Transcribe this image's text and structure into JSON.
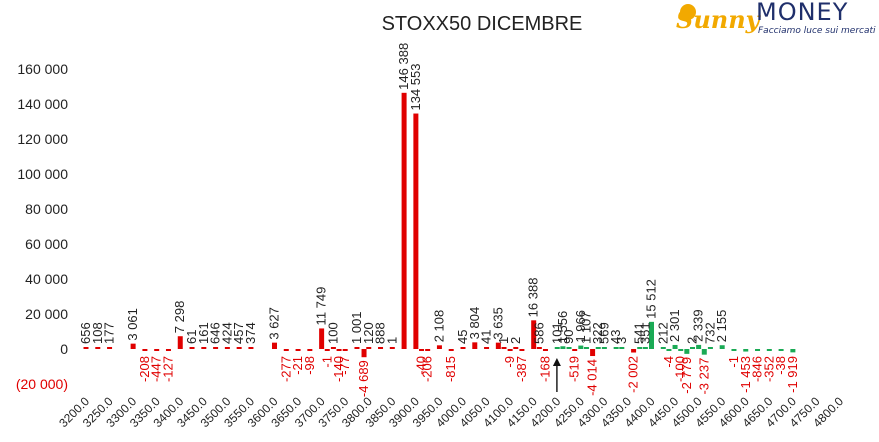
{
  "logo": {
    "name_part1": "Sunny",
    "name_part2": "MONEY",
    "tagline": "Facciamo luce sui mercati",
    "colors": {
      "sun": "#f2a900",
      "text": "#1f2f6b"
    }
  },
  "chart_data": {
    "type": "bar",
    "title": "STOXX50 DICEMBRE",
    "xlabel": "",
    "ylabel": "",
    "ylim": [
      -20000,
      160000
    ],
    "yticks": [
      -20000,
      0,
      20000,
      40000,
      60000,
      80000,
      100000,
      120000,
      140000,
      160000
    ],
    "ytick_labels": [
      "(20 000)",
      "0",
      "20 000",
      "40 000",
      "60 000",
      "80 000",
      "100 000",
      "120 000",
      "140 000",
      "160 000"
    ],
    "grid": false,
    "legend": "none",
    "colors": {
      "put": "#e00000",
      "call": "#1aaa55",
      "axis_negative": "#e00000"
    },
    "x_tick_labels": [
      "3200.0",
      "3250.0",
      "3300.0",
      "3350.0",
      "3400.0",
      "3450.0",
      "3500.0",
      "3550.0",
      "3600.0",
      "3650.0",
      "3700.0",
      "3750.0",
      "3800.0",
      "3850.0",
      "3900.0",
      "3950.0",
      "4000.0",
      "4050.0",
      "4100.0",
      "4150.0",
      "4200.0",
      "4250.0",
      "4300.0",
      "4350.0",
      "4400.0",
      "4450.0",
      "4500.0",
      "4550.0",
      "4600.0",
      "4650.0",
      "4700.0",
      "4750.0",
      "4800.0"
    ],
    "bars": [
      {
        "strike": 3200,
        "value": 656,
        "label": "656",
        "color": "put"
      },
      {
        "strike": 3225,
        "value": 108,
        "label": "108",
        "color": "put"
      },
      {
        "strike": 3250,
        "value": 177,
        "label": "177",
        "color": "put"
      },
      {
        "strike": 3300,
        "value": 3061,
        "label": "3 061",
        "color": "put"
      },
      {
        "strike": 3325,
        "value": -208,
        "label": "-208",
        "color": "put"
      },
      {
        "strike": 3350,
        "value": -447,
        "label": "-447",
        "color": "put"
      },
      {
        "strike": 3375,
        "value": -127,
        "label": "-127",
        "color": "put"
      },
      {
        "strike": 3400,
        "value": 7298,
        "label": "7 298",
        "color": "put"
      },
      {
        "strike": 3425,
        "value": 61,
        "label": "61",
        "color": "put"
      },
      {
        "strike": 3450,
        "value": 161,
        "label": "161",
        "color": "put"
      },
      {
        "strike": 3475,
        "value": 646,
        "label": "646",
        "color": "put"
      },
      {
        "strike": 3500,
        "value": 424,
        "label": "424",
        "color": "put"
      },
      {
        "strike": 3525,
        "value": 457,
        "label": "457",
        "color": "put"
      },
      {
        "strike": 3550,
        "value": 374,
        "label": "374",
        "color": "put"
      },
      {
        "strike": 3600,
        "value": 3627,
        "label": "3 627",
        "color": "put"
      },
      {
        "strike": 3625,
        "value": -277,
        "label": "-277",
        "color": "put"
      },
      {
        "strike": 3650,
        "value": -21,
        "label": "-21",
        "color": "put"
      },
      {
        "strike": 3675,
        "value": -98,
        "label": "-98",
        "color": "put"
      },
      {
        "strike": 3700,
        "value": 11749,
        "label": "11 749",
        "color": "put"
      },
      {
        "strike": 3712,
        "value": -1,
        "label": "-1",
        "color": "put"
      },
      {
        "strike": 3725,
        "value": 100,
        "label": "100",
        "color": "put"
      },
      {
        "strike": 3737,
        "value": -140,
        "label": "-140",
        "color": "put"
      },
      {
        "strike": 3750,
        "value": -77,
        "label": "-77",
        "color": "put"
      },
      {
        "strike": 3775,
        "value": 1001,
        "label": "1 001",
        "color": "put"
      },
      {
        "strike": 3790,
        "value": -4689,
        "label": "-4 689",
        "color": "put"
      },
      {
        "strike": 3800,
        "value": 120,
        "label": "120",
        "color": "put"
      },
      {
        "strike": 3825,
        "value": 888,
        "label": "888",
        "color": "put"
      },
      {
        "strike": 3850,
        "value": 1,
        "label": "1",
        "color": "put"
      },
      {
        "strike": 3875,
        "value": 146388,
        "label": "146 388",
        "color": "put"
      },
      {
        "strike": 3900,
        "value": 134553,
        "label": "134 553",
        "color": "put"
      },
      {
        "strike": 3912,
        "value": -40,
        "label": "-40",
        "color": "put"
      },
      {
        "strike": 3925,
        "value": -206,
        "label": "-206",
        "color": "put"
      },
      {
        "strike": 3950,
        "value": 2108,
        "label": "2 108",
        "color": "put"
      },
      {
        "strike": 3975,
        "value": -815,
        "label": "-815",
        "color": "put"
      },
      {
        "strike": 4000,
        "value": 45,
        "label": "45",
        "color": "put"
      },
      {
        "strike": 4025,
        "value": 3804,
        "label": "3 804",
        "color": "put"
      },
      {
        "strike": 4050,
        "value": 41,
        "label": "41",
        "color": "put"
      },
      {
        "strike": 4075,
        "value": 3635,
        "label": "3 635",
        "color": "put"
      },
      {
        "strike": 4087,
        "value": 1,
        "label": "1",
        "color": "put"
      },
      {
        "strike": 4100,
        "value": -9,
        "label": "-9",
        "color": "put"
      },
      {
        "strike": 4112,
        "value": 2,
        "label": "2",
        "color": "put"
      },
      {
        "strike": 4125,
        "value": -387,
        "label": "-387",
        "color": "put"
      },
      {
        "strike": 4150,
        "value": 16388,
        "label": "16 388",
        "color": "put"
      },
      {
        "strike": 4162,
        "value": 586,
        "label": "586",
        "color": "put"
      },
      {
        "strike": 4175,
        "value": -168,
        "label": "-168",
        "color": "put"
      },
      {
        "strike": 4200,
        "value": 101,
        "label": "101",
        "color": "call"
      },
      {
        "strike": 4212,
        "value": 1556,
        "label": "1 556",
        "color": "call"
      },
      {
        "strike": 4225,
        "value": 90,
        "label": "90",
        "color": "call"
      },
      {
        "strike": 4237,
        "value": -519,
        "label": "-519",
        "color": "put"
      },
      {
        "strike": 4250,
        "value": 1966,
        "label": "1 966",
        "color": "call"
      },
      {
        "strike": 4262,
        "value": 1107,
        "label": "1 107",
        "color": "call"
      },
      {
        "strike": 4275,
        "value": -4014,
        "label": "-4 014",
        "color": "put"
      },
      {
        "strike": 4287,
        "value": 322,
        "label": "322",
        "color": "call"
      },
      {
        "strike": 4300,
        "value": 569,
        "label": "569",
        "color": "call"
      },
      {
        "strike": 4325,
        "value": 43,
        "label": "43",
        "color": "call"
      },
      {
        "strike": 4337,
        "value": 3,
        "label": "3",
        "color": "call"
      },
      {
        "strike": 4362,
        "value": -2002,
        "label": "-2 002",
        "color": "put"
      },
      {
        "strike": 4375,
        "value": 541,
        "label": "541",
        "color": "call"
      },
      {
        "strike": 4387,
        "value": 351,
        "label": "351",
        "color": "call"
      },
      {
        "strike": 4400,
        "value": 15512,
        "label": "15 512",
        "color": "call"
      },
      {
        "strike": 4425,
        "value": 212,
        "label": "212",
        "color": "call"
      },
      {
        "strike": 4437,
        "value": -4,
        "label": "-4",
        "color": "call"
      },
      {
        "strike": 4450,
        "value": 2301,
        "label": "2 301",
        "color": "call"
      },
      {
        "strike": 4462,
        "value": -100,
        "label": "-100",
        "color": "call"
      },
      {
        "strike": 4475,
        "value": -2779,
        "label": "-2 779",
        "color": "call"
      },
      {
        "strike": 4487,
        "value": 2,
        "label": "2",
        "color": "call"
      },
      {
        "strike": 4500,
        "value": 2339,
        "label": "2 339",
        "color": "call"
      },
      {
        "strike": 4512,
        "value": -3237,
        "label": "-3 237",
        "color": "call"
      },
      {
        "strike": 4525,
        "value": 732,
        "label": "732",
        "color": "call"
      },
      {
        "strike": 4550,
        "value": 2155,
        "label": "2 155",
        "color": "call"
      },
      {
        "strike": 4575,
        "value": -1,
        "label": "-1",
        "color": "call"
      },
      {
        "strike": 4600,
        "value": -1453,
        "label": "-1 453",
        "color": "call"
      },
      {
        "strike": 4625,
        "value": -846,
        "label": "-846",
        "color": "call"
      },
      {
        "strike": 4650,
        "value": -352,
        "label": "-352",
        "color": "call"
      },
      {
        "strike": 4675,
        "value": -38,
        "label": "-38",
        "color": "call"
      },
      {
        "strike": 4700,
        "value": -1919,
        "label": "-1 919",
        "color": "call"
      }
    ],
    "annotations": [
      {
        "type": "arrow",
        "at_strike": 4212,
        "direction": "up"
      }
    ]
  }
}
